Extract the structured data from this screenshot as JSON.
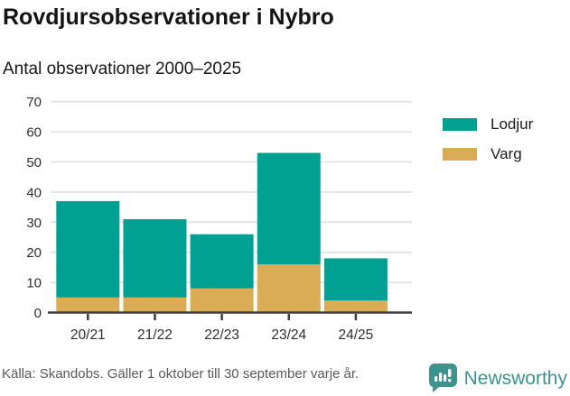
{
  "header": {
    "title": "Rovdjursobservationer i Nybro",
    "subtitle": "Antal observationer 2000–2025"
  },
  "chart_data": {
    "type": "bar",
    "stacked": true,
    "title": "Rovdjursobservationer i Nybro",
    "subtitle": "Antal observationer 2000–2025",
    "categories": [
      "20/21",
      "21/22",
      "22/23",
      "23/24",
      "24/25"
    ],
    "series": [
      {
        "name": "Varg",
        "color": "#d9ac55",
        "values": [
          5,
          5,
          8,
          16,
          4
        ]
      },
      {
        "name": "Lodjur",
        "color": "#00a093",
        "values": [
          32,
          26,
          18,
          37,
          14
        ]
      }
    ],
    "totals": [
      37,
      31,
      26,
      53,
      18
    ],
    "xlabel": "",
    "ylabel": "",
    "ylim": [
      0,
      70
    ],
    "yticks": [
      0,
      10,
      20,
      30,
      40,
      50,
      60,
      70
    ],
    "grid": true,
    "legend": {
      "position": "right-top",
      "entries": [
        {
          "label": "Lodjur",
          "color": "#00a093"
        },
        {
          "label": "Varg",
          "color": "#d9ac55"
        }
      ]
    }
  },
  "footer": {
    "source": "Källa: Skandobs. Gäller 1 oktober till 30 september varje år.",
    "brand": "Newsworthy"
  },
  "colors": {
    "axis": "#3d3d3d",
    "gridline": "#e4e4e4",
    "tick_label": "#2e2e2e",
    "brand_teal": "#3d938d"
  }
}
